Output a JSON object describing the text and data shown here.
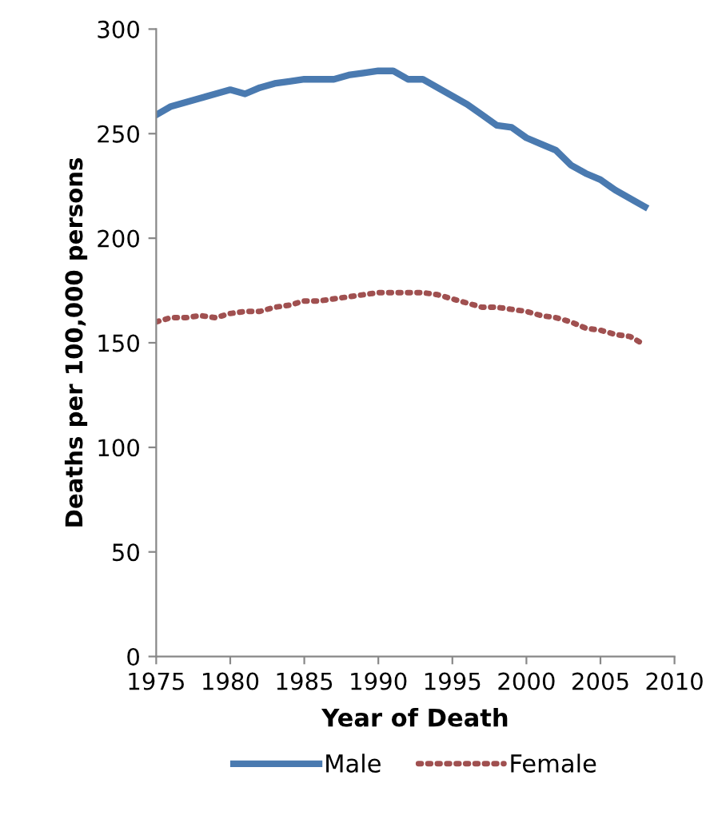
{
  "chart_data": {
    "type": "line",
    "xlabel": "Year of Death",
    "ylabel": "Deaths per 100,000 persons",
    "x": [
      1975,
      1976,
      1977,
      1978,
      1979,
      1980,
      1981,
      1982,
      1983,
      1984,
      1985,
      1986,
      1987,
      1988,
      1989,
      1990,
      1991,
      1992,
      1993,
      1994,
      1995,
      1996,
      1997,
      1998,
      1999,
      2000,
      2001,
      2002,
      2003,
      2004,
      2005,
      2006,
      2007,
      2008
    ],
    "series": [
      {
        "name": "Male",
        "color": "#4a7ab0",
        "line_style": "solid",
        "values": [
          259,
          263,
          265,
          267,
          269,
          271,
          269,
          272,
          274,
          275,
          276,
          276,
          276,
          278,
          279,
          280,
          280,
          276,
          276,
          272,
          268,
          264,
          259,
          254,
          253,
          248,
          245,
          242,
          235,
          231,
          228,
          223,
          219,
          215
        ]
      },
      {
        "name": "Female",
        "color": "#a05050",
        "line_style": "dotted",
        "values": [
          160,
          162,
          162,
          163,
          162,
          164,
          165,
          165,
          167,
          168,
          170,
          170,
          171,
          172,
          173,
          174,
          174,
          174,
          174,
          173,
          171,
          169,
          167,
          167,
          166,
          165,
          163,
          162,
          160,
          157,
          156,
          154,
          153,
          149
        ]
      }
    ],
    "xlim": [
      1975,
      2010
    ],
    "xticks": [
      1975,
      1980,
      1985,
      1990,
      1995,
      2000,
      2005,
      2010
    ],
    "ylim": [
      0,
      300
    ],
    "yticks": [
      0,
      50,
      100,
      150,
      200,
      250,
      300
    ],
    "grid": false,
    "legend": "bottom",
    "marker": "none"
  }
}
